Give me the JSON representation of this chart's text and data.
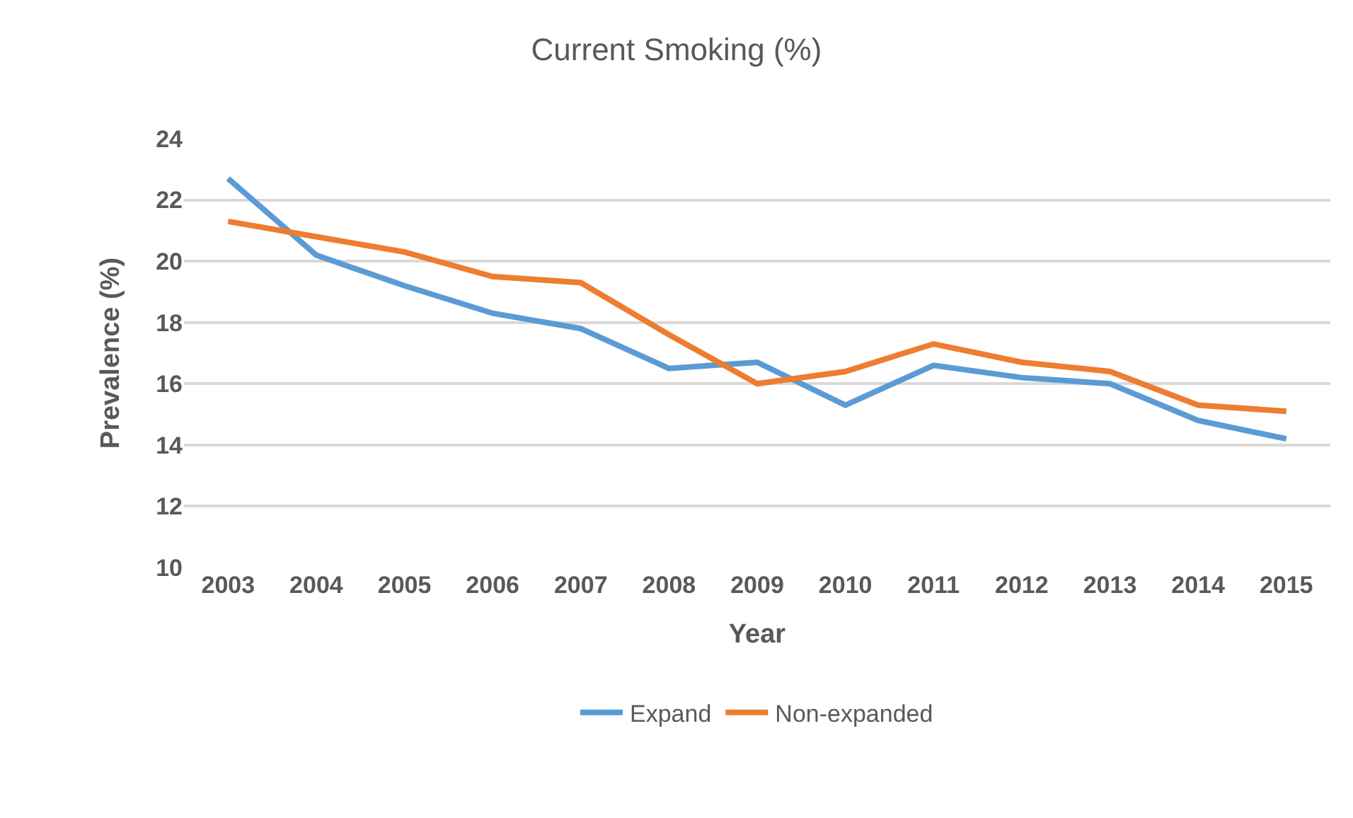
{
  "chart_data": {
    "type": "line",
    "title": "Current Smoking (%)",
    "xlabel": "Year",
    "ylabel": "Prevalence (%)",
    "categories": [
      "2003",
      "2004",
      "2005",
      "2006",
      "2007",
      "2008",
      "2009",
      "2010",
      "2011",
      "2012",
      "2013",
      "2014",
      "2015"
    ],
    "series": [
      {
        "name": "Expand",
        "color": "#5b9bd5",
        "values": [
          22.7,
          20.2,
          19.2,
          18.3,
          17.8,
          16.5,
          16.7,
          15.3,
          16.6,
          16.2,
          16.0,
          14.8,
          14.2
        ]
      },
      {
        "name": "Non-expanded",
        "color": "#ed7d31",
        "values": [
          21.3,
          20.8,
          20.3,
          19.5,
          19.3,
          17.6,
          16.0,
          16.4,
          17.3,
          16.7,
          16.4,
          15.3,
          15.1
        ]
      }
    ],
    "ylim": [
      10,
      24
    ],
    "yticks": [
      10,
      12,
      14,
      16,
      18,
      20,
      22,
      24
    ],
    "grid": "y",
    "legend": "bottom",
    "marker": "none",
    "line_style": "solid"
  }
}
